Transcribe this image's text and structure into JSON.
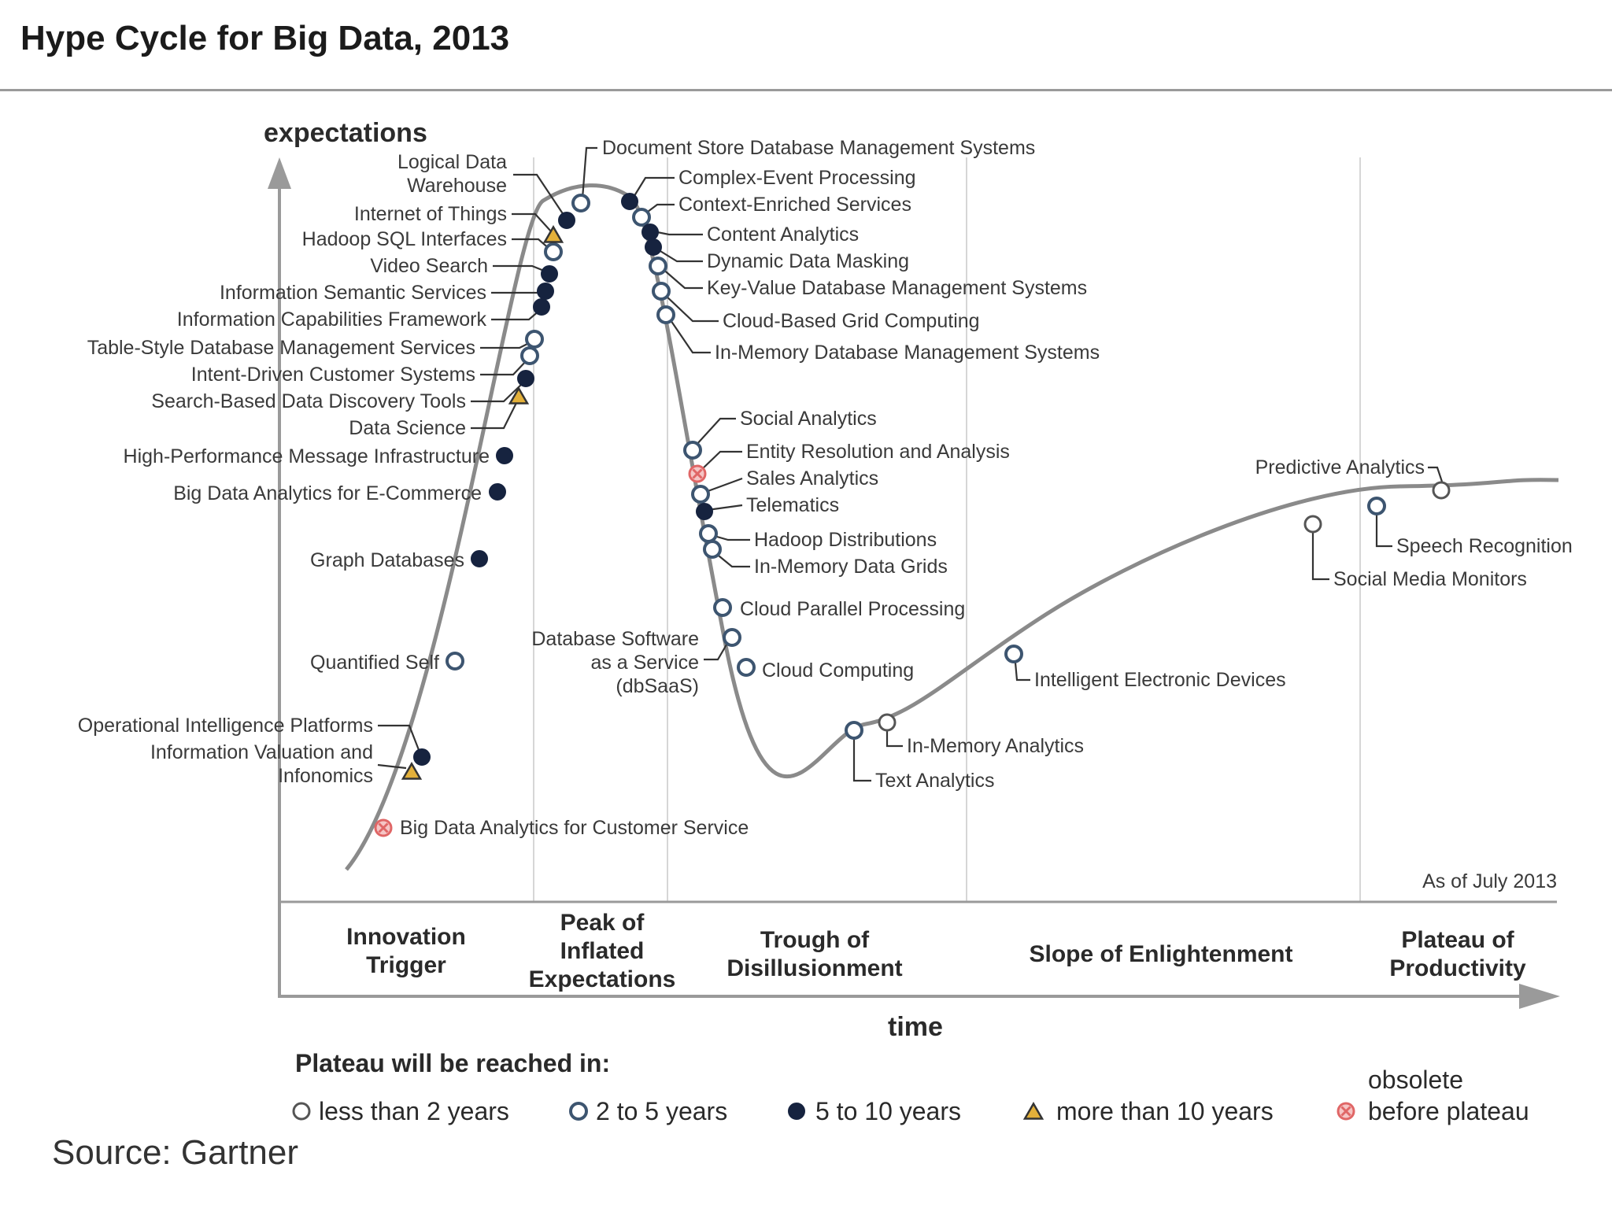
{
  "title": "Hype Cycle for Big Data, 2013",
  "source": "Source: Gartner",
  "axes": {
    "y_label": "expectations",
    "x_label": "time"
  },
  "as_of": "As of July 2013",
  "phases": [
    {
      "lines": [
        "Innovation",
        "Trigger"
      ]
    },
    {
      "lines": [
        "Peak of",
        "Inflated",
        "Expectations"
      ]
    },
    {
      "lines": [
        "Trough of",
        "Disillusionment"
      ]
    },
    {
      "lines": [
        "Slope of Enlightenment"
      ]
    },
    {
      "lines": [
        "Plateau of",
        "Productivity"
      ]
    }
  ],
  "legend": {
    "heading": "Plateau will be reached in:",
    "items": [
      {
        "marker": "open-circle",
        "label": "less than 2 years"
      },
      {
        "marker": "light-circle",
        "label": "2 to 5 years"
      },
      {
        "marker": "dark-circle",
        "label": "5 to 10 years"
      },
      {
        "marker": "triangle",
        "label": "more than 10 years"
      },
      {
        "marker": "obsolete-x",
        "label_lines": [
          "obsolete",
          "before plateau"
        ]
      }
    ]
  },
  "colors": {
    "curve": "#8a8a8a",
    "dark": "#16233f",
    "light_fill": "#ffffff",
    "light_stroke": "#3d5570",
    "open_stroke": "#555555",
    "triangle": "#e3b03a",
    "obsolete": "#e06666"
  },
  "technologies": [
    {
      "lines": [
        "Big Data Analytics for Customer Service"
      ],
      "marker": "obsolete-x"
    },
    {
      "lines": [
        "Operational Intelligence Platforms"
      ],
      "marker": "dark-circle"
    },
    {
      "lines": [
        "Information Valuation and",
        "Infonomics"
      ],
      "marker": "triangle"
    },
    {
      "lines": [
        "Quantified Self"
      ],
      "marker": "light-circle"
    },
    {
      "lines": [
        "Graph Databases"
      ],
      "marker": "dark-circle"
    },
    {
      "lines": [
        "Big Data Analytics for E-Commerce"
      ],
      "marker": "dark-circle"
    },
    {
      "lines": [
        "High-Performance Message Infrastructure"
      ],
      "marker": "dark-circle"
    },
    {
      "lines": [
        "Data Science"
      ],
      "marker": "triangle"
    },
    {
      "lines": [
        "Search-Based Data Discovery Tools"
      ],
      "marker": "dark-circle"
    },
    {
      "lines": [
        "Intent-Driven Customer Systems"
      ],
      "marker": "light-circle"
    },
    {
      "lines": [
        "Table-Style Database Management Services"
      ],
      "marker": "light-circle"
    },
    {
      "lines": [
        "Information Capabilities Framework"
      ],
      "marker": "dark-circle"
    },
    {
      "lines": [
        "Information Semantic Services"
      ],
      "marker": "dark-circle"
    },
    {
      "lines": [
        "Video Search"
      ],
      "marker": "dark-circle"
    },
    {
      "lines": [
        "Hadoop SQL Interfaces"
      ],
      "marker": "light-circle"
    },
    {
      "lines": [
        "Internet of Things"
      ],
      "marker": "triangle"
    },
    {
      "lines": [
        "Logical Data",
        "Warehouse"
      ],
      "marker": "dark-circle"
    },
    {
      "lines": [
        "Document Store Database Management Systems"
      ],
      "marker": "light-circle"
    },
    {
      "lines": [
        "Complex-Event Processing"
      ],
      "marker": "dark-circle"
    },
    {
      "lines": [
        "Context-Enriched Services"
      ],
      "marker": "light-circle"
    },
    {
      "lines": [
        "Content Analytics"
      ],
      "marker": "dark-circle"
    },
    {
      "lines": [
        "Dynamic Data Masking"
      ],
      "marker": "dark-circle"
    },
    {
      "lines": [
        "Key-Value Database Management Systems"
      ],
      "marker": "light-circle"
    },
    {
      "lines": [
        "Cloud-Based Grid Computing"
      ],
      "marker": "light-circle"
    },
    {
      "lines": [
        "In-Memory Database Management Systems"
      ],
      "marker": "light-circle"
    },
    {
      "lines": [
        "Social Analytics"
      ],
      "marker": "light-circle"
    },
    {
      "lines": [
        "Entity Resolution and Analysis"
      ],
      "marker": "obsolete-x"
    },
    {
      "lines": [
        "Sales Analytics"
      ],
      "marker": "light-circle"
    },
    {
      "lines": [
        "Telematics"
      ],
      "marker": "dark-circle"
    },
    {
      "lines": [
        "Hadoop Distributions"
      ],
      "marker": "light-circle"
    },
    {
      "lines": [
        "In-Memory Data Grids"
      ],
      "marker": "light-circle"
    },
    {
      "lines": [
        "Cloud Parallel Processing"
      ],
      "marker": "light-circle"
    },
    {
      "lines": [
        "Database Software",
        "as a Service",
        "(dbSaaS)"
      ],
      "marker": "light-circle"
    },
    {
      "lines": [
        "Cloud Computing"
      ],
      "marker": "light-circle"
    },
    {
      "lines": [
        "Text Analytics"
      ],
      "marker": "light-circle"
    },
    {
      "lines": [
        "In-Memory Analytics"
      ],
      "marker": "open-circle"
    },
    {
      "lines": [
        "Intelligent Electronic Devices"
      ],
      "marker": "light-circle"
    },
    {
      "lines": [
        "Social Media Monitors"
      ],
      "marker": "open-circle"
    },
    {
      "lines": [
        "Speech Recognition"
      ],
      "marker": "light-circle"
    },
    {
      "lines": [
        "Predictive Analytics"
      ],
      "marker": "open-circle"
    }
  ]
}
